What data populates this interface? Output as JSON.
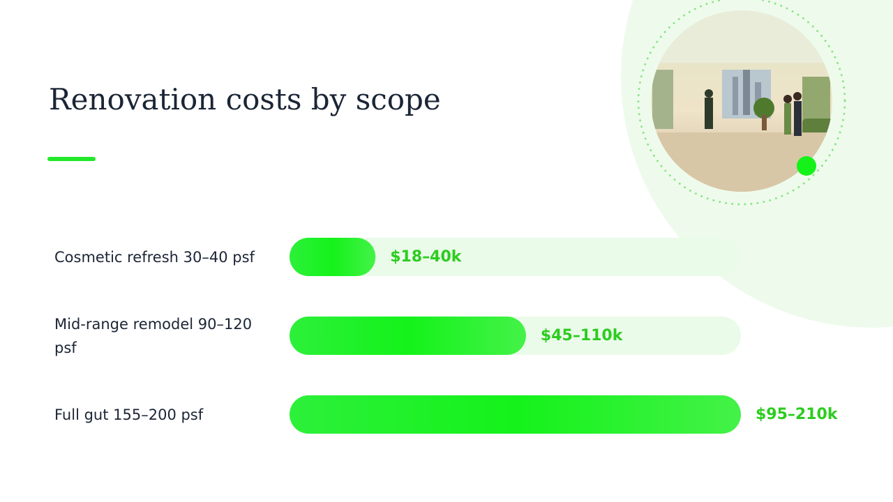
{
  "chart_data": {
    "type": "bar",
    "orientation": "horizontal",
    "title": "Renovation costs by scope",
    "categories": [
      "Cosmetic refresh 30–40 psf",
      "Mid-range remodel 90–120 psf",
      "Full gut 155–200 psf"
    ],
    "values": [
      40,
      110,
      210
    ],
    "value_labels": [
      "$18–40k",
      "$45–110k",
      "$95–210k"
    ],
    "color": "#22f02a",
    "xlim": [
      0,
      210
    ]
  }
}
